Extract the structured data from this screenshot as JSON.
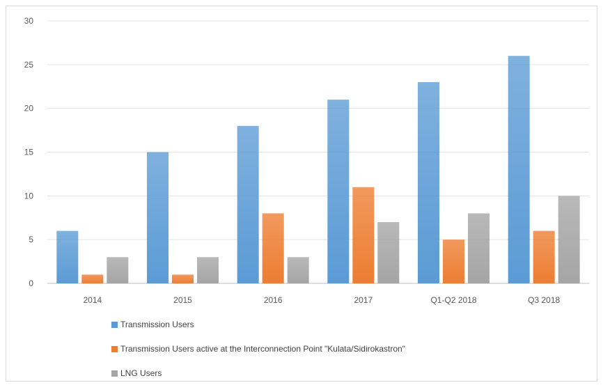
{
  "chart_data": {
    "type": "bar",
    "title": "",
    "xlabel": "",
    "ylabel": "",
    "categories": [
      "2014",
      "2015",
      "2016",
      "2017",
      "Q1-Q2 2018",
      "Q3 2018"
    ],
    "series": [
      {
        "name": "Transmission Users",
        "values": [
          6,
          15,
          18,
          21,
          23,
          26
        ],
        "color": "#5b9bd5"
      },
      {
        "name": "Transmission Users active at the Interconnection Point \"Kulata/Sidirokastron\"",
        "values": [
          1,
          1,
          8,
          11,
          5,
          6
        ],
        "color": "#ed7d31"
      },
      {
        "name": "LNG Users",
        "values": [
          3,
          3,
          3,
          7,
          8,
          10
        ],
        "color": "#a5a5a5"
      }
    ],
    "ylim": [
      0,
      30
    ],
    "yticks": [
      0,
      5,
      10,
      15,
      20,
      25,
      30
    ],
    "grid": true,
    "legend_position": "bottom-left"
  }
}
